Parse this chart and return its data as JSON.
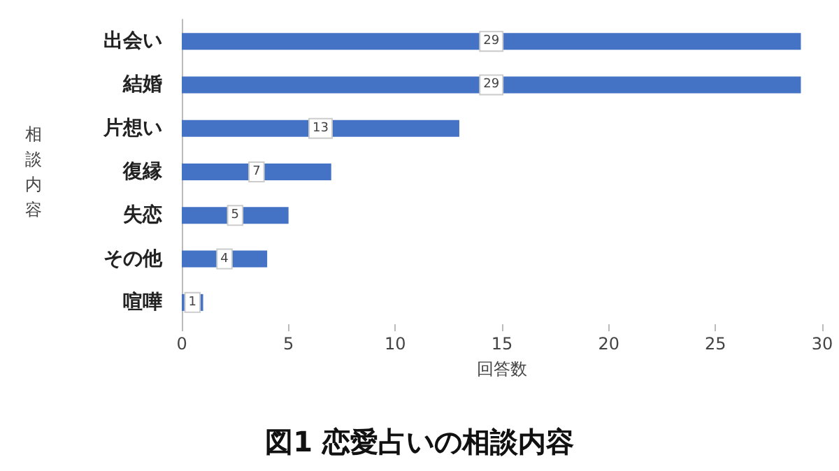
{
  "chart_data": {
    "type": "bar",
    "orientation": "horizontal",
    "title": "図1 恋愛占いの相談内容",
    "xlabel": "回答数",
    "ylabel": "相談内容",
    "categories": [
      "出会い",
      "結婚",
      "片想い",
      "復縁",
      "失恋",
      "その他",
      "喧嘩"
    ],
    "values": [
      29,
      29,
      13,
      7,
      5,
      4,
      1
    ],
    "color": "#4472c4",
    "xlim": [
      0,
      30
    ],
    "xticks": [
      0,
      5,
      10,
      15,
      20,
      25,
      30
    ],
    "grid": false,
    "data_labels": true
  }
}
